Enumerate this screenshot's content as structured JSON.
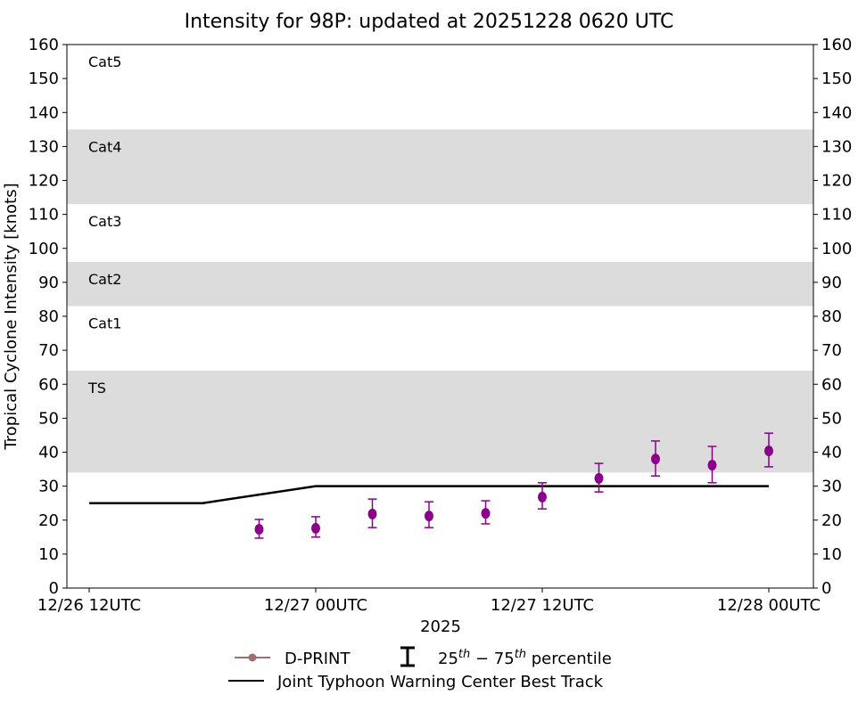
{
  "chart_data": {
    "type": "scatter",
    "title": "Intensity for 98P: updated at 20251228 0620 UTC",
    "xlabel": "2025",
    "ylabel": "Tropical Cyclone Intensity [knots]",
    "ylim": [
      0,
      160
    ],
    "xlim_hours": [
      -1,
      32.5
    ],
    "x_unit": "hours since 12/26 12UTC",
    "yticks": [
      0,
      10,
      20,
      30,
      40,
      50,
      60,
      70,
      80,
      90,
      100,
      110,
      120,
      130,
      140,
      150,
      160
    ],
    "xticks": [
      {
        "hour": 0,
        "label": "12/26 12UTC"
      },
      {
        "hour": 12,
        "label": "12/27 00UTC"
      },
      {
        "hour": 24,
        "label": "12/27 12UTC"
      },
      {
        "hour": 36,
        "label": "12/28 00UTC"
      }
    ],
    "bands": [
      {
        "label": "TS",
        "from": 34,
        "to": 64,
        "shaded": true
      },
      {
        "label": "Cat1",
        "from": 64,
        "to": 83,
        "shaded": false
      },
      {
        "label": "Cat2",
        "from": 83,
        "to": 96,
        "shaded": true
      },
      {
        "label": "Cat3",
        "from": 96,
        "to": 113,
        "shaded": false
      },
      {
        "label": "Cat4",
        "from": 113,
        "to": 135,
        "shaded": true
      },
      {
        "label": "Cat5",
        "from": 135,
        "to": 160,
        "shaded": false
      }
    ],
    "series": [
      {
        "name": "D-PRINT",
        "color": "#8b008b",
        "legend_color": "#a07070",
        "points": [
          {
            "hour": 9,
            "value": 17.3,
            "p25": 14.7,
            "p75": 20.2
          },
          {
            "hour": 12,
            "value": 17.6,
            "p25": 15.0,
            "p75": 21.0
          },
          {
            "hour": 15,
            "value": 21.8,
            "p25": 17.8,
            "p75": 26.2
          },
          {
            "hour": 18,
            "value": 21.2,
            "p25": 17.8,
            "p75": 25.4
          },
          {
            "hour": 21,
            "value": 22.0,
            "p25": 18.9,
            "p75": 25.7
          },
          {
            "hour": 24,
            "value": 26.8,
            "p25": 23.3,
            "p75": 31.0
          },
          {
            "hour": 27,
            "value": 32.3,
            "p25": 28.3,
            "p75": 36.7
          },
          {
            "hour": 30,
            "value": 38.0,
            "p25": 33.0,
            "p75": 43.3
          },
          {
            "hour": 33,
            "value": 36.2,
            "p25": 31.0,
            "p75": 41.7
          },
          {
            "hour": 36,
            "value": 40.4,
            "p25": 35.7,
            "p75": 45.6
          }
        ]
      },
      {
        "name": "Joint Typhoon Warning Center Best Track",
        "color": "#000000",
        "points": [
          {
            "hour": 0,
            "value": 25
          },
          {
            "hour": 6,
            "value": 25
          },
          {
            "hour": 12,
            "value": 30
          },
          {
            "hour": 36,
            "value": 30
          }
        ]
      }
    ],
    "legend": {
      "placement": "bottom",
      "dprint": "D-PRINT",
      "percentile_25": "25",
      "percentile_th": "th",
      "percentile_dash": " − 75",
      "percentile_tail": " percentile",
      "best_track": "Joint Typhoon Warning Center Best Track"
    },
    "band_color": "#dcdcdc"
  }
}
